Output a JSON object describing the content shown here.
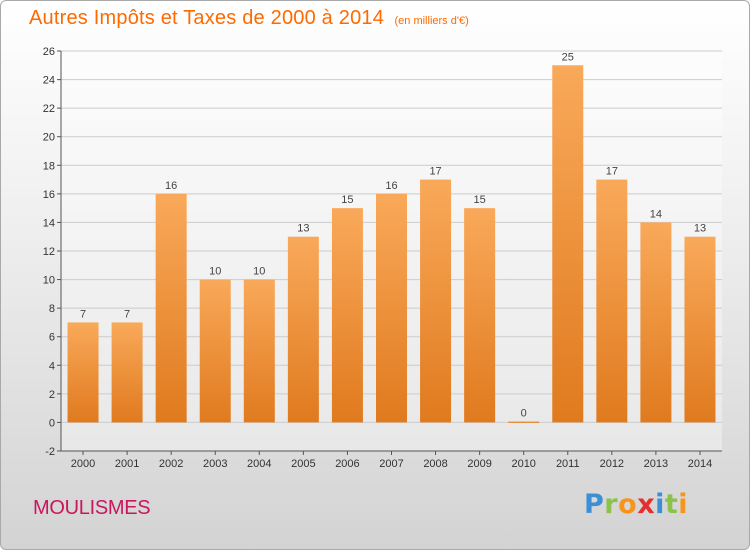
{
  "header": {
    "title": "Autres Impôts et Taxes de 2000 à 2014",
    "subtitle": "(en milliers d'€)"
  },
  "footer": {
    "place": "MOULISMES",
    "brand_letters": [
      "P",
      "r",
      "o",
      "x",
      "i",
      "t",
      "i"
    ]
  },
  "colors": {
    "title": "#ff6a00",
    "place": "#c8175d",
    "bar_light": "#f9a95a",
    "bar_dark": "#e07a1e",
    "grid": "#cccccc",
    "brand": [
      "#3a8fd6",
      "#8bc34a",
      "#f7941d",
      "#e52e2e",
      "#3a8fd6",
      "#8bc34a",
      "#f7941d"
    ]
  },
  "chart_data": {
    "type": "bar",
    "title": "Autres Impôts et Taxes de 2000 à 2014",
    "subtitle": "(en milliers d'€)",
    "categories": [
      "2000",
      "2001",
      "2002",
      "2003",
      "2004",
      "2005",
      "2006",
      "2007",
      "2008",
      "2009",
      "2010",
      "2011",
      "2012",
      "2013",
      "2014"
    ],
    "values": [
      7,
      7,
      16,
      10,
      10,
      13,
      15,
      16,
      17,
      15,
      0,
      25,
      17,
      14,
      13
    ],
    "ylim": [
      -2,
      26
    ],
    "yticks": [
      -2,
      0,
      2,
      4,
      6,
      8,
      10,
      12,
      14,
      16,
      18,
      20,
      22,
      24,
      26
    ],
    "grid": true,
    "legend": "none"
  }
}
